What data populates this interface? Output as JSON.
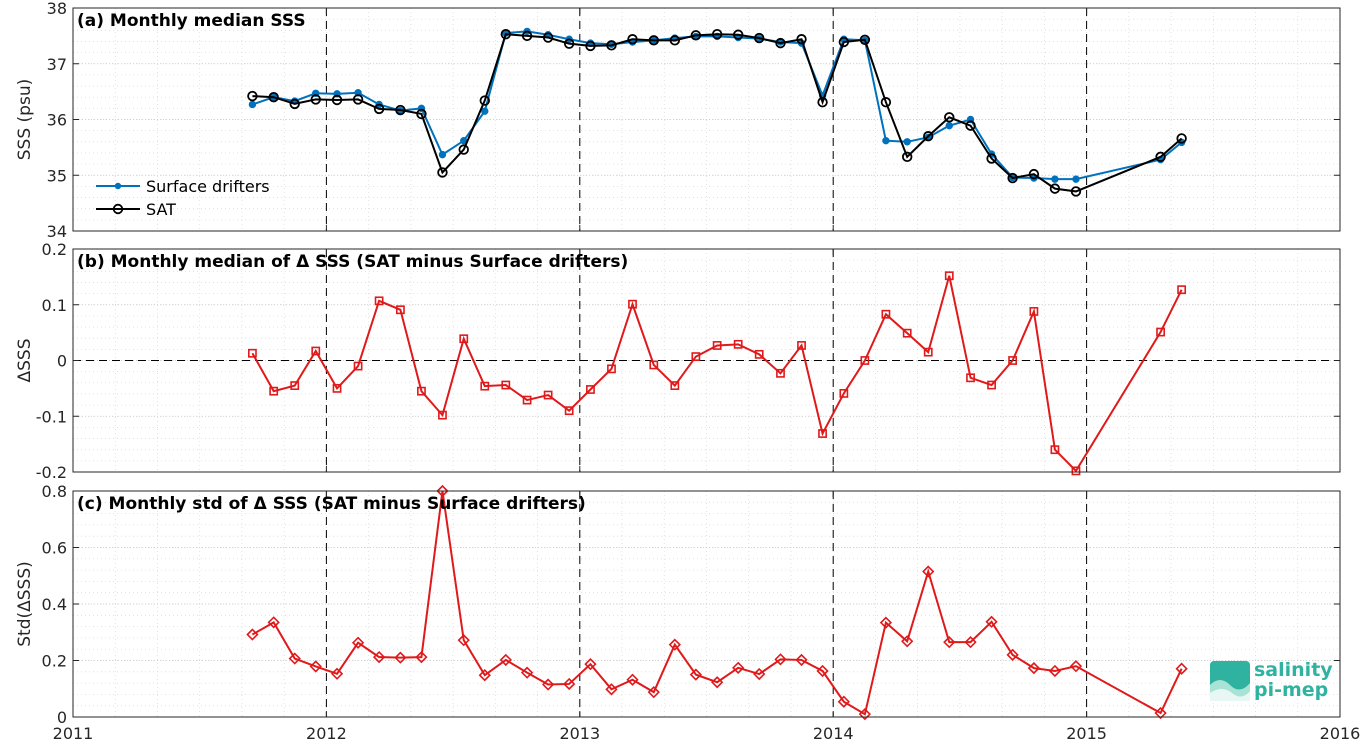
{
  "x_ticks": [
    "2011",
    "2012",
    "2013",
    "2014",
    "2015",
    "2016"
  ],
  "colors": {
    "drifters": "#0072BD",
    "sat": "#000000",
    "delta": "#E0191A",
    "logo": "#2fb3a0"
  },
  "logo": {
    "line1": "salinity",
    "line2": "pi-mep"
  },
  "chart_data": [
    {
      "type": "line",
      "title": "(a) Monthly median SSS",
      "ylabel": "SSS (psu)",
      "ylim": [
        34,
        38
      ],
      "yticks": [
        "34",
        "35",
        "36",
        "37",
        "38"
      ],
      "xlim": [
        2011,
        2016
      ],
      "grid": true,
      "legend_position": "left",
      "series": [
        {
          "name": "Surface drifters",
          "marker": "dot",
          "points": [
            [
              2011.708,
              36.27
            ],
            [
              2011.792,
              36.4
            ],
            [
              2011.875,
              36.33
            ],
            [
              2011.958,
              36.47
            ],
            [
              2012.042,
              36.46
            ],
            [
              2012.125,
              36.48
            ],
            [
              2012.208,
              36.27
            ],
            [
              2012.292,
              36.16
            ],
            [
              2012.375,
              36.2
            ],
            [
              2012.458,
              35.37
            ],
            [
              2012.542,
              35.62
            ],
            [
              2012.625,
              36.15
            ],
            [
              2012.708,
              37.55
            ],
            [
              2012.792,
              37.58
            ],
            [
              2012.875,
              37.52
            ],
            [
              2012.958,
              37.44
            ],
            [
              2013.042,
              37.37
            ],
            [
              2013.125,
              37.35
            ],
            [
              2013.208,
              37.39
            ],
            [
              2013.292,
              37.42
            ],
            [
              2013.375,
              37.46
            ],
            [
              2013.458,
              37.49
            ],
            [
              2013.542,
              37.49
            ],
            [
              2013.625,
              37.47
            ],
            [
              2013.708,
              37.45
            ],
            [
              2013.792,
              37.39
            ],
            [
              2013.875,
              37.37
            ],
            [
              2013.958,
              36.43
            ],
            [
              2014.042,
              37.44
            ],
            [
              2014.125,
              37.42
            ],
            [
              2014.208,
              35.62
            ],
            [
              2014.292,
              35.6
            ],
            [
              2014.375,
              35.68
            ],
            [
              2014.458,
              35.89
            ],
            [
              2014.542,
              36.0
            ],
            [
              2014.625,
              35.38
            ],
            [
              2014.708,
              34.96
            ],
            [
              2014.792,
              34.95
            ],
            [
              2014.875,
              34.93
            ],
            [
              2014.958,
              34.93
            ],
            [
              2015.292,
              35.28
            ],
            [
              2015.375,
              35.59
            ]
          ]
        },
        {
          "name": "SAT",
          "marker": "circle",
          "points": [
            [
              2011.708,
              36.42
            ],
            [
              2011.792,
              36.4
            ],
            [
              2011.875,
              36.28
            ],
            [
              2011.958,
              36.36
            ],
            [
              2012.042,
              36.35
            ],
            [
              2012.125,
              36.36
            ],
            [
              2012.208,
              36.19
            ],
            [
              2012.292,
              36.17
            ],
            [
              2012.375,
              36.1
            ],
            [
              2012.458,
              35.05
            ],
            [
              2012.542,
              35.46
            ],
            [
              2012.625,
              36.34
            ],
            [
              2012.708,
              37.53
            ],
            [
              2012.792,
              37.5
            ],
            [
              2012.875,
              37.47
            ],
            [
              2012.958,
              37.36
            ],
            [
              2013.042,
              37.32
            ],
            [
              2013.125,
              37.33
            ],
            [
              2013.208,
              37.44
            ],
            [
              2013.292,
              37.42
            ],
            [
              2013.375,
              37.42
            ],
            [
              2013.458,
              37.51
            ],
            [
              2013.542,
              37.53
            ],
            [
              2013.625,
              37.52
            ],
            [
              2013.708,
              37.46
            ],
            [
              2013.792,
              37.37
            ],
            [
              2013.875,
              37.44
            ],
            [
              2013.958,
              36.31
            ],
            [
              2014.042,
              37.39
            ],
            [
              2014.125,
              37.43
            ],
            [
              2014.208,
              36.31
            ],
            [
              2014.292,
              35.33
            ],
            [
              2014.375,
              35.7
            ],
            [
              2014.458,
              36.04
            ],
            [
              2014.542,
              35.89
            ],
            [
              2014.625,
              35.3
            ],
            [
              2014.708,
              34.95
            ],
            [
              2014.792,
              35.02
            ],
            [
              2014.875,
              34.76
            ],
            [
              2014.958,
              34.71
            ],
            [
              2015.292,
              35.33
            ],
            [
              2015.375,
              35.66
            ]
          ]
        }
      ]
    },
    {
      "type": "line",
      "title": "(b) Monthly median of Δ SSS (SAT minus Surface drifters)",
      "ylabel": "ΔSSS",
      "ylim": [
        -0.2,
        0.2
      ],
      "yticks": [
        "-0.2",
        "-0.1",
        "0",
        "0.1",
        "0.2"
      ],
      "xlim": [
        2011,
        2016
      ],
      "grid": true,
      "zero_line": true,
      "series": [
        {
          "marker": "square",
          "points": [
            [
              2011.708,
              0.013
            ],
            [
              2011.792,
              -0.055
            ],
            [
              2011.875,
              -0.045
            ],
            [
              2011.958,
              0.017
            ],
            [
              2012.042,
              -0.05
            ],
            [
              2012.125,
              -0.01
            ],
            [
              2012.208,
              0.107
            ],
            [
              2012.292,
              0.091
            ],
            [
              2012.375,
              -0.055
            ],
            [
              2012.458,
              -0.098
            ],
            [
              2012.542,
              0.039
            ],
            [
              2012.625,
              -0.046
            ],
            [
              2012.708,
              -0.044
            ],
            [
              2012.792,
              -0.071
            ],
            [
              2012.875,
              -0.062
            ],
            [
              2012.958,
              -0.09
            ],
            [
              2013.042,
              -0.052
            ],
            [
              2013.125,
              -0.015
            ],
            [
              2013.208,
              0.101
            ],
            [
              2013.292,
              -0.008
            ],
            [
              2013.375,
              -0.045
            ],
            [
              2013.458,
              0.007
            ],
            [
              2013.542,
              0.027
            ],
            [
              2013.625,
              0.029
            ],
            [
              2013.708,
              0.011
            ],
            [
              2013.792,
              -0.023
            ],
            [
              2013.875,
              0.027
            ],
            [
              2013.958,
              -0.131
            ],
            [
              2014.042,
              -0.059
            ],
            [
              2014.125,
              0.0
            ],
            [
              2014.208,
              0.083
            ],
            [
              2014.292,
              0.049
            ],
            [
              2014.375,
              0.015
            ],
            [
              2014.458,
              0.152
            ],
            [
              2014.542,
              -0.031
            ],
            [
              2014.625,
              -0.044
            ],
            [
              2014.708,
              0.0
            ],
            [
              2014.792,
              0.088
            ],
            [
              2014.875,
              -0.16
            ],
            [
              2014.958,
              -0.198
            ],
            [
              2015.292,
              0.051
            ],
            [
              2015.375,
              0.127
            ]
          ]
        }
      ]
    },
    {
      "type": "line",
      "title": "(c) Monthly std of Δ SSS (SAT minus Surface drifters)",
      "ylabel": "Std(ΔSSS)",
      "ylim": [
        0,
        0.8
      ],
      "yticks": [
        "0",
        "0.2",
        "0.4",
        "0.6",
        "0.8"
      ],
      "xlim": [
        2011,
        2016
      ],
      "grid": true,
      "series": [
        {
          "marker": "diamond",
          "points": [
            [
              2011.708,
              0.292
            ],
            [
              2011.792,
              0.335
            ],
            [
              2011.875,
              0.207
            ],
            [
              2011.958,
              0.179
            ],
            [
              2012.042,
              0.153
            ],
            [
              2012.125,
              0.263
            ],
            [
              2012.208,
              0.212
            ],
            [
              2012.292,
              0.21
            ],
            [
              2012.375,
              0.212
            ],
            [
              2012.458,
              0.8
            ],
            [
              2012.542,
              0.272
            ],
            [
              2012.625,
              0.148
            ],
            [
              2012.708,
              0.202
            ],
            [
              2012.792,
              0.157
            ],
            [
              2012.875,
              0.115
            ],
            [
              2012.958,
              0.117
            ],
            [
              2013.042,
              0.187
            ],
            [
              2013.125,
              0.098
            ],
            [
              2013.208,
              0.132
            ],
            [
              2013.292,
              0.088
            ],
            [
              2013.375,
              0.256
            ],
            [
              2013.458,
              0.15
            ],
            [
              2013.542,
              0.123
            ],
            [
              2013.625,
              0.174
            ],
            [
              2013.708,
              0.152
            ],
            [
              2013.792,
              0.204
            ],
            [
              2013.875,
              0.202
            ],
            [
              2013.958,
              0.163
            ],
            [
              2014.042,
              0.054
            ],
            [
              2014.125,
              0.01
            ],
            [
              2014.208,
              0.334
            ],
            [
              2014.292,
              0.268
            ],
            [
              2014.375,
              0.515
            ],
            [
              2014.458,
              0.265
            ],
            [
              2014.542,
              0.265
            ],
            [
              2014.625,
              0.337
            ],
            [
              2014.708,
              0.22
            ],
            [
              2014.792,
              0.173
            ],
            [
              2014.875,
              0.163
            ],
            [
              2014.958,
              0.18
            ],
            [
              2015.292,
              0.014
            ],
            [
              2015.375,
              0.171
            ]
          ]
        }
      ]
    }
  ]
}
